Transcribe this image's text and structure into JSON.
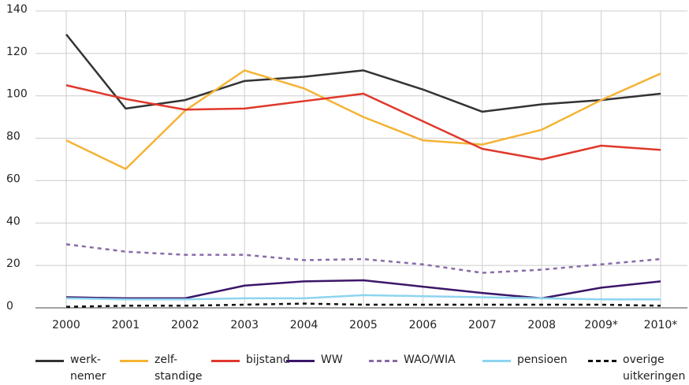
{
  "chart_data": {
    "type": "line",
    "categories": [
      "2000",
      "2001",
      "2002",
      "2003",
      "2004",
      "2005",
      "2006",
      "2007",
      "2008",
      "2009*",
      "2010*"
    ],
    "ylim": [
      0,
      140
    ],
    "yticks": [
      0,
      20,
      40,
      60,
      80,
      100,
      120,
      140
    ],
    "grid": true,
    "series": [
      {
        "name": "werk-\nnemer",
        "color": "#333333",
        "dash": false,
        "values": [
          129,
          94,
          98,
          107,
          109,
          112,
          103,
          92.5,
          96,
          98,
          101
        ]
      },
      {
        "name": "zelf-\nstandige",
        "color": "#f5b335",
        "dash": false,
        "values": [
          79,
          65.5,
          93,
          112,
          103.5,
          90,
          79,
          77,
          84,
          98,
          110.5
        ]
      },
      {
        "name": "bijstand",
        "color": "#e0382c",
        "dash": false,
        "values": [
          105,
          98.5,
          93.5,
          94,
          97.5,
          101,
          88,
          75,
          70,
          76.5,
          74.5
        ]
      },
      {
        "name": "WW",
        "color": "#3b1668",
        "dash": false,
        "values": [
          5,
          4.5,
          4.5,
          10.5,
          12.5,
          13,
          10,
          7,
          4.5,
          9.5,
          12.5
        ]
      },
      {
        "name": "WAO/WIA",
        "color": "#8a6aa8",
        "dash": true,
        "values": [
          30,
          26.5,
          25,
          25,
          22.5,
          23,
          20.5,
          16.5,
          18,
          20.5,
          23
        ]
      },
      {
        "name": "pensioen",
        "color": "#8ed4ef",
        "dash": false,
        "values": [
          4.5,
          4,
          4,
          4.5,
          4.5,
          6,
          5.5,
          5,
          4.5,
          4,
          4
        ]
      },
      {
        "name": "overige\nuitkeringen",
        "color": "#111111",
        "dash": true,
        "values": [
          0.5,
          1,
          1,
          1.5,
          2,
          1.5,
          1.5,
          1.5,
          1.5,
          1.5,
          1
        ]
      }
    ]
  }
}
